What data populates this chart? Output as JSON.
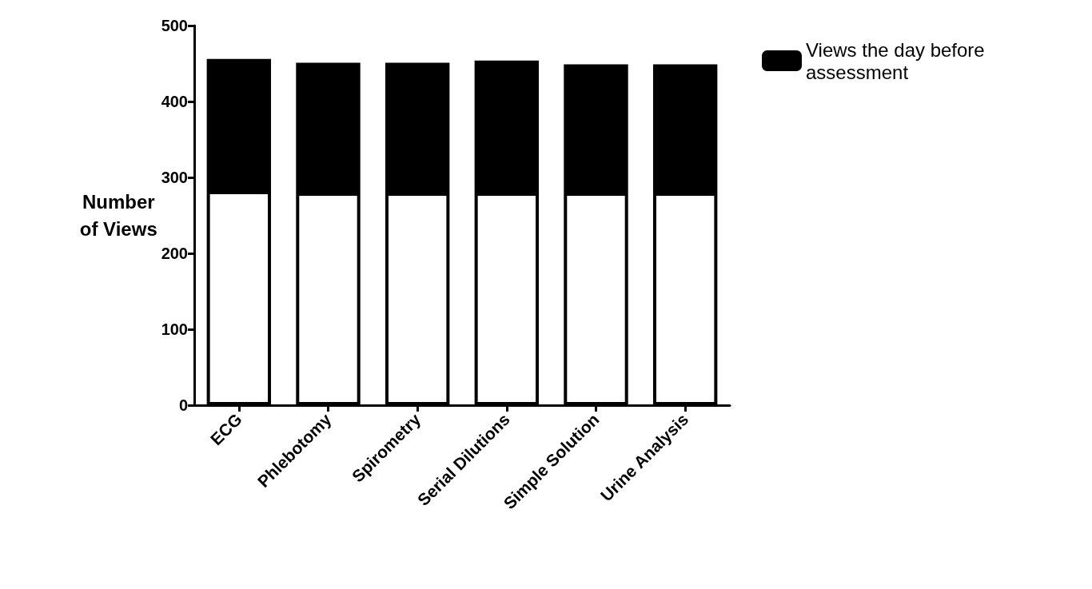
{
  "chart_data": {
    "type": "bar",
    "stacked": true,
    "ylabel": "Number\nof Views",
    "categories": [
      "ECG",
      "Phlebotomy",
      "Spirometry",
      "Serial Dilutions",
      "Simple Solution",
      "Urine Analysis"
    ],
    "series": [
      {
        "color": "#ffffff",
        "values": [
          282,
          280,
          280,
          280,
          280,
          280
        ]
      },
      {
        "name": "Views the day before\nassessment",
        "color": "#000000",
        "values": [
          174,
          171,
          171,
          174,
          169,
          169
        ]
      }
    ],
    "ylim": [
      0,
      500
    ],
    "yticks": [
      0,
      100,
      200,
      300,
      400,
      500
    ],
    "grid": false,
    "legend": "top right"
  }
}
